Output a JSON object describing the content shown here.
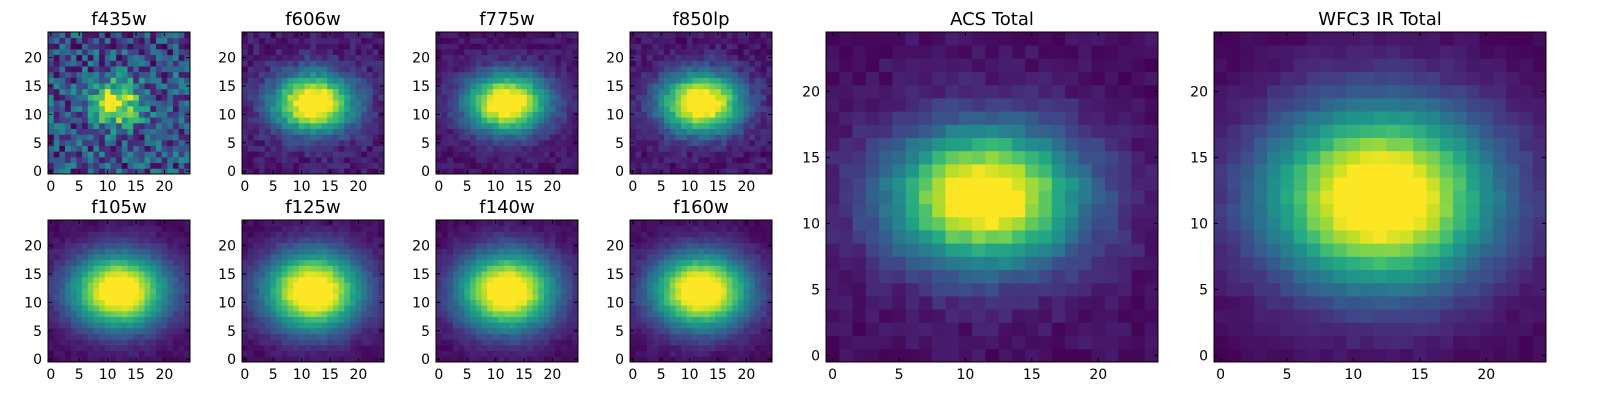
{
  "chart_data": [
    {
      "type": "heatmap",
      "title": "f435w",
      "xticks": [
        0,
        5,
        10,
        15,
        20
      ],
      "yticks": [
        0,
        5,
        10,
        15,
        20
      ],
      "xlim": [
        -0.5,
        24.5
      ],
      "ylim": [
        -0.5,
        24.5
      ],
      "grid_size": 25,
      "center": [
        11.5,
        12
      ],
      "sigma": [
        3,
        2.6
      ],
      "background": 0.42,
      "noise": 0.32,
      "colormap": "viridis"
    },
    {
      "type": "heatmap",
      "title": "f606w",
      "xticks": [
        0,
        5,
        10,
        15,
        20
      ],
      "yticks": [
        0,
        5,
        10,
        15,
        20
      ],
      "xlim": [
        -0.5,
        24.5
      ],
      "ylim": [
        -0.5,
        24.5
      ],
      "grid_size": 25,
      "center": [
        12,
        12
      ],
      "sigma": [
        5,
        3.6
      ],
      "background": 0.1,
      "noise": 0.07,
      "colormap": "viridis"
    },
    {
      "type": "heatmap",
      "title": "f775w",
      "xticks": [
        0,
        5,
        10,
        15,
        20
      ],
      "yticks": [
        0,
        5,
        10,
        15,
        20
      ],
      "xlim": [
        -0.5,
        24.5
      ],
      "ylim": [
        -0.5,
        24.5
      ],
      "grid_size": 25,
      "center": [
        12,
        12
      ],
      "sigma": [
        5,
        3.6
      ],
      "background": 0.1,
      "noise": 0.05,
      "colormap": "viridis"
    },
    {
      "type": "heatmap",
      "title": "f850lp",
      "xticks": [
        0,
        5,
        10,
        15,
        20
      ],
      "yticks": [
        0,
        5,
        10,
        15,
        20
      ],
      "xlim": [
        -0.5,
        24.5
      ],
      "ylim": [
        -0.5,
        24.5
      ],
      "grid_size": 25,
      "center": [
        12,
        12
      ],
      "sigma": [
        5,
        3.6
      ],
      "background": 0.1,
      "noise": 0.06,
      "colormap": "viridis"
    },
    {
      "type": "heatmap",
      "title": "f105w",
      "xticks": [
        0,
        5,
        10,
        15,
        20
      ],
      "yticks": [
        0,
        5,
        10,
        15,
        20
      ],
      "xlim": [
        -0.5,
        24.5
      ],
      "ylim": [
        -0.5,
        24.5
      ],
      "grid_size": 25,
      "center": [
        12,
        12
      ],
      "sigma": [
        6,
        4.6
      ],
      "background": 0.05,
      "noise": 0.03,
      "colormap": "viridis"
    },
    {
      "type": "heatmap",
      "title": "f125w",
      "xticks": [
        0,
        5,
        10,
        15,
        20
      ],
      "yticks": [
        0,
        5,
        10,
        15,
        20
      ],
      "xlim": [
        -0.5,
        24.5
      ],
      "ylim": [
        -0.5,
        24.5
      ],
      "grid_size": 25,
      "center": [
        12,
        12
      ],
      "sigma": [
        6,
        4.8
      ],
      "background": 0.05,
      "noise": 0.03,
      "colormap": "viridis"
    },
    {
      "type": "heatmap",
      "title": "f140w",
      "xticks": [
        0,
        5,
        10,
        15,
        20
      ],
      "yticks": [
        0,
        5,
        10,
        15,
        20
      ],
      "xlim": [
        -0.5,
        24.5
      ],
      "ylim": [
        -0.5,
        24.5
      ],
      "grid_size": 25,
      "center": [
        12,
        12
      ],
      "sigma": [
        6,
        4.8
      ],
      "background": 0.05,
      "noise": 0.03,
      "colormap": "viridis"
    },
    {
      "type": "heatmap",
      "title": "f160w",
      "xticks": [
        0,
        5,
        10,
        15,
        20
      ],
      "yticks": [
        0,
        5,
        10,
        15,
        20
      ],
      "xlim": [
        -0.5,
        24.5
      ],
      "ylim": [
        -0.5,
        24.5
      ],
      "grid_size": 25,
      "center": [
        12,
        12
      ],
      "sigma": [
        6,
        4.6
      ],
      "background": 0.05,
      "noise": 0.03,
      "colormap": "viridis"
    },
    {
      "type": "heatmap",
      "title": "ACS Total",
      "xticks": [
        0,
        5,
        10,
        15,
        20
      ],
      "yticks": [
        0,
        5,
        10,
        15,
        20
      ],
      "xlim": [
        -0.5,
        24.5
      ],
      "ylim": [
        -0.5,
        24.5
      ],
      "grid_size": 25,
      "center": [
        11.5,
        12
      ],
      "sigma": [
        5,
        3.6
      ],
      "background": 0.08,
      "noise": 0.04,
      "colormap": "viridis"
    },
    {
      "type": "heatmap",
      "title": "WFC3 IR Total",
      "xticks": [
        0,
        5,
        10,
        15,
        20
      ],
      "yticks": [
        0,
        5,
        10,
        15,
        20
      ],
      "xlim": [
        -0.5,
        24.5
      ],
      "ylim": [
        -0.5,
        24.5
      ],
      "grid_size": 25,
      "center": [
        12,
        12
      ],
      "sigma": [
        6,
        4.8
      ],
      "background": 0.04,
      "noise": 0.02,
      "colormap": "viridis"
    }
  ]
}
